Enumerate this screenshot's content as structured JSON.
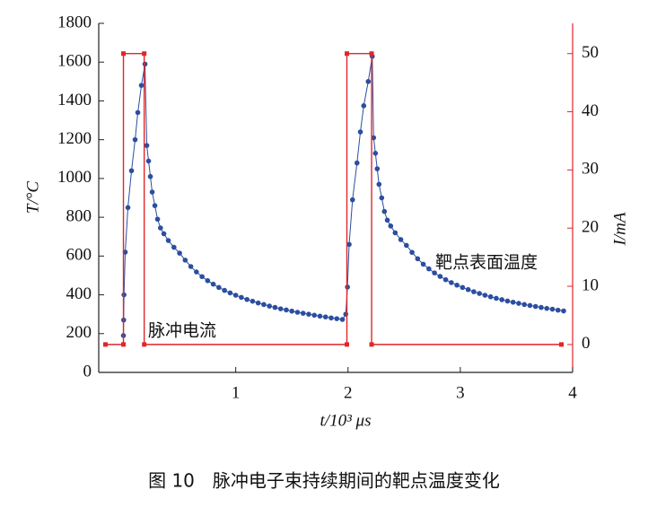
{
  "chart_data": {
    "type": "line",
    "xlabel": "t/10³ μs",
    "ylabel": "T/°C",
    "y2label": "I/mA",
    "caption": "图 10　脉冲电子束持续期间的靶点温度变化",
    "annotations": [
      "脉冲电流",
      "靶点表面温度"
    ],
    "xlim": [
      -0.22,
      4.0
    ],
    "xticks": [
      1,
      2,
      3,
      4
    ],
    "ylim": [
      0,
      1800
    ],
    "yticks": [
      0,
      200,
      400,
      600,
      800,
      1000,
      1200,
      1400,
      1600,
      1800
    ],
    "y2lim": [
      -4.8,
      55.2
    ],
    "y2ticks": [
      0,
      10,
      20,
      30,
      40,
      50
    ],
    "series": [
      {
        "name": "靶点表面温度",
        "color": "#2b4ea0",
        "axis": "y",
        "x": [
          0,
          0.002,
          0.005,
          0.016,
          0.04,
          0.072,
          0.104,
          0.128,
          0.16,
          0.192,
          0.208,
          0.224,
          0.24,
          0.256,
          0.28,
          0.304,
          0.33,
          0.36,
          0.4,
          0.45,
          0.5,
          0.55,
          0.6,
          0.65,
          0.7,
          0.75,
          0.8,
          0.85,
          0.9,
          0.95,
          1.0,
          1.05,
          1.1,
          1.15,
          1.2,
          1.25,
          1.3,
          1.35,
          1.4,
          1.45,
          1.5,
          1.55,
          1.6,
          1.65,
          1.7,
          1.75,
          1.8,
          1.85,
          1.9,
          1.95,
          1.98,
          1.995,
          2.01,
          2.04,
          2.08,
          2.11,
          2.14,
          2.18,
          2.216,
          2.228,
          2.244,
          2.26,
          2.276,
          2.3,
          2.324,
          2.35,
          2.38,
          2.42,
          2.47,
          2.52,
          2.57,
          2.62,
          2.67,
          2.72,
          2.77,
          2.82,
          2.87,
          2.92,
          2.97,
          3.02,
          3.07,
          3.12,
          3.17,
          3.22,
          3.27,
          3.32,
          3.37,
          3.42,
          3.47,
          3.52,
          3.57,
          3.62,
          3.67,
          3.72,
          3.77,
          3.82,
          3.87,
          3.92
        ],
        "values": [
          190,
          270,
          400,
          620,
          850,
          1040,
          1200,
          1340,
          1480,
          1590,
          1170,
          1090,
          1010,
          930,
          860,
          790,
          745,
          715,
          680,
          645,
          615,
          579,
          546,
          518,
          494,
          473,
          455,
          438,
          423,
          410,
          398,
          387,
          376,
          367,
          358,
          350,
          342,
          335,
          328,
          322,
          316,
          310,
          305,
          300,
          295,
          290,
          286,
          281,
          277,
          273,
          300,
          440,
          660,
          890,
          1080,
          1240,
          1375,
          1500,
          1630,
          1210,
          1130,
          1050,
          970,
          900,
          830,
          785,
          755,
          720,
          685,
          655,
          619,
          586,
          558,
          534,
          513,
          495,
          478,
          463,
          450,
          438,
          427,
          416,
          407,
          398,
          390,
          382,
          375,
          368,
          362,
          356,
          350,
          345,
          340,
          335,
          330,
          326,
          321,
          317
        ]
      },
      {
        "name": "脉冲电流",
        "color": "#e0262a",
        "axis": "y2",
        "x": [
          -0.16,
          0,
          0,
          0.185,
          0.185,
          1.99,
          1.99,
          2.21,
          2.21,
          3.9
        ],
        "values": [
          0,
          0,
          50,
          50,
          0,
          0,
          50,
          50,
          0,
          0
        ]
      }
    ]
  }
}
